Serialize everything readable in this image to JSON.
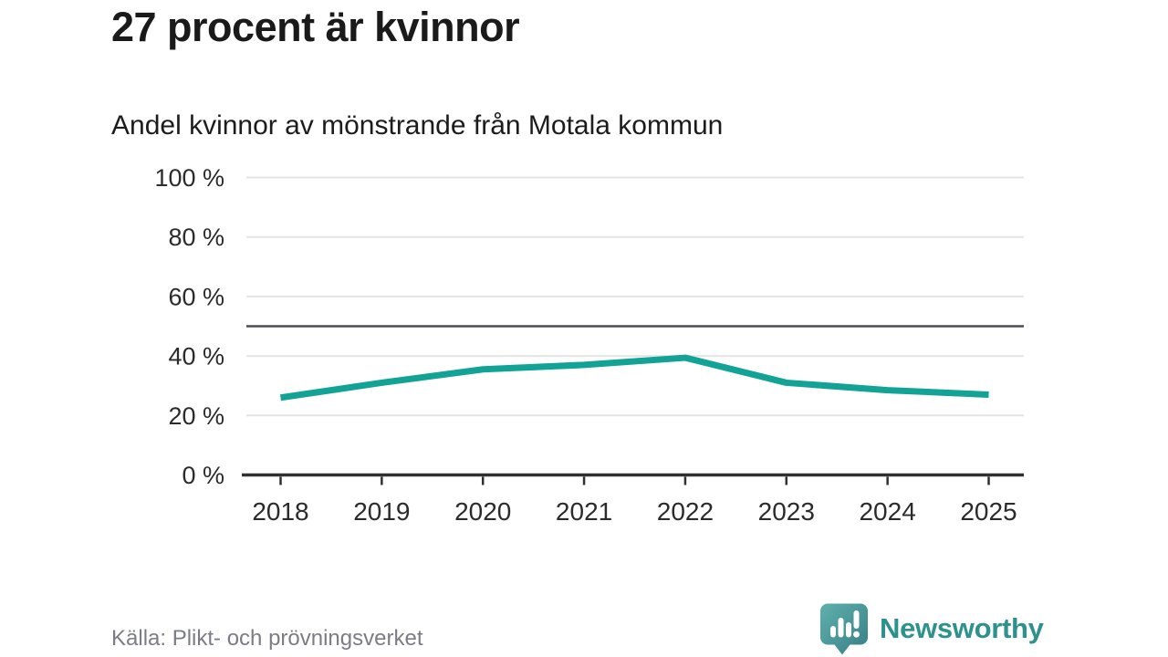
{
  "chart_data": {
    "type": "line",
    "title": "27 procent är kvinnor",
    "subtitle": "Andel kvinnor av mönstrande från Motala kommun",
    "source": "Källa: Plikt- och prövningsverket",
    "categories": [
      "2018",
      "2019",
      "2020",
      "2021",
      "2022",
      "2023",
      "2024",
      "2025"
    ],
    "series": [
      {
        "name": "Andel kvinnor av mönstrande",
        "values": [
          26,
          31,
          35.5,
          37,
          39.4,
          31,
          28.5,
          27
        ]
      }
    ],
    "unit": "%",
    "ylim": [
      0,
      100
    ],
    "yticks": [
      0,
      20,
      40,
      60,
      80,
      100
    ],
    "ytick_suffix": " %",
    "reference_line": 50,
    "grid": true,
    "legend": "none",
    "xlabel": "",
    "ylabel": ""
  },
  "branding": {
    "logo_text": "Newsworthy",
    "logo_icon": "speech-bubble-with-bar-chart-and-exclamation"
  },
  "colors": {
    "line": "#12a296",
    "grid": "#e4e4e4",
    "axis": "#303030",
    "reference": "#4b4b54",
    "tick_text": "#2b2b2b",
    "title_text": "#1a1a1a",
    "muted_text": "#7c7c86",
    "brand_text": "#2d918d",
    "logo_gradient_start": "#5fb0ad",
    "logo_gradient_end": "#377f86"
  }
}
